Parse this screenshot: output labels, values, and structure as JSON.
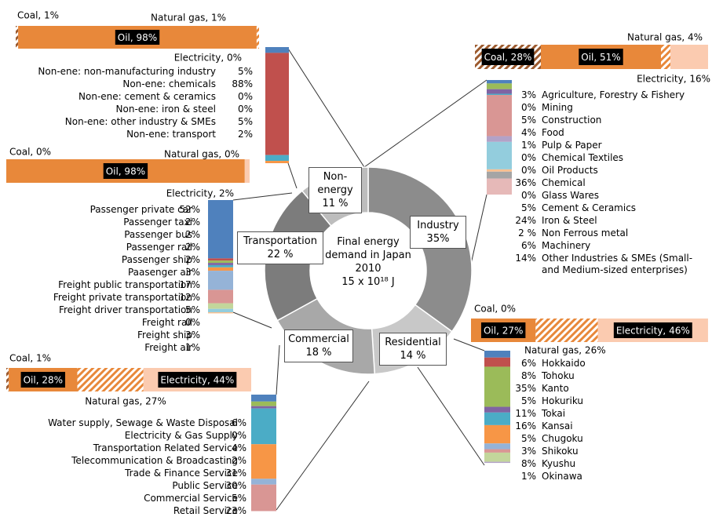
{
  "chart_data": {
    "type": "pie",
    "title": "Final energy demand in Japan 2010",
    "subtitle": "15 x 10¹⁸ J",
    "categories": [
      "Industry",
      "Residential",
      "Commercial",
      "Transportation",
      "Non-energy"
    ],
    "values": [
      35,
      14,
      18,
      22,
      11
    ],
    "value_labels": [
      "35%",
      "14 %",
      "18 %",
      "22 %",
      "11 %"
    ],
    "colors": [
      "#8c8c8c",
      "#c8c8c8",
      "#a8a8a8",
      "#7c7c7c",
      "#bdbdbd"
    ],
    "palette": [
      "#4f81bd",
      "#c0504d",
      "#9bbb59",
      "#8064a2",
      "#4bacc6",
      "#f79646",
      "#95b3d7",
      "#d99694",
      "#c3d69b",
      "#b3a2c7",
      "#93cddd",
      "#fac090",
      "#a5a5a5",
      "#e6b9b8"
    ],
    "breakdowns": [
      {
        "fuel": [
          {
            "label": "Coal, 28%",
            "value": 28,
            "color": "#9c5a2e",
            "hatch": true
          },
          {
            "label": "Oil, 51%",
            "value": 51,
            "color": "#e8883a",
            "hatch": false
          },
          {
            "label": "Natural gas, 4%",
            "value": 4,
            "color": "#e8883a",
            "hatch": true
          },
          {
            "label": "Electricity, 16%",
            "value": 16,
            "color": "#fbcbb0",
            "hatch": false
          }
        ],
        "items": [
          {
            "name": "Agriculture, Forestry & Fishery",
            "value": 3,
            "value_label": "3%"
          },
          {
            "name": "Mining",
            "value": 0,
            "value_label": "0%"
          },
          {
            "name": "Construction",
            "value": 5,
            "value_label": "5%"
          },
          {
            "name": "Food",
            "value": 4,
            "value_label": "4%"
          },
          {
            "name": "Pulp & Paper",
            "value": 1,
            "value_label": "1%"
          },
          {
            "name": "Chemical Textiles",
            "value": 0,
            "value_label": "0%"
          },
          {
            "name": "Oil Products",
            "value": 0,
            "value_label": "0%"
          },
          {
            "name": "Chemical",
            "value": 36,
            "value_label": "36%"
          },
          {
            "name": "Glass Wares",
            "value": 0,
            "value_label": "0%"
          },
          {
            "name": "Cement & Ceramics",
            "value": 5,
            "value_label": "5%"
          },
          {
            "name": "Iron & Steel",
            "value": 24,
            "value_label": "24%"
          },
          {
            "name": "Non Ferrous metal",
            "value": 2,
            "value_label": "2 %"
          },
          {
            "name": "Machinery",
            "value": 6,
            "value_label": "6%"
          },
          {
            "name": "Other Industries & SMEs (Small- and Medium-sized enterprises)",
            "value": 14,
            "value_label": "14%"
          }
        ]
      },
      {
        "fuel": [
          {
            "label": "Coal, 0%",
            "value": 0,
            "color": "#9c5a2e",
            "hatch": true
          },
          {
            "label": "Oil, 27%",
            "value": 27,
            "color": "#e8883a",
            "hatch": false
          },
          {
            "label": "Natural gas, 26%",
            "value": 26,
            "color": "#e8883a",
            "hatch": true
          },
          {
            "label": "Electricity, 46%",
            "value": 46,
            "color": "#fbcbb0",
            "hatch": false
          }
        ],
        "items": [
          {
            "name": "Hokkaido",
            "value": 6,
            "value_label": "6%"
          },
          {
            "name": "Tohoku",
            "value": 8,
            "value_label": "8%"
          },
          {
            "name": "Kanto",
            "value": 35,
            "value_label": "35%"
          },
          {
            "name": "Hokuriku",
            "value": 5,
            "value_label": "5%"
          },
          {
            "name": "Tokai",
            "value": 11,
            "value_label": "11%"
          },
          {
            "name": "Kansai",
            "value": 16,
            "value_label": "16%"
          },
          {
            "name": "Chugoku",
            "value": 5,
            "value_label": "5%"
          },
          {
            "name": "Shikoku",
            "value": 3,
            "value_label": "3%"
          },
          {
            "name": "Kyushu",
            "value": 8,
            "value_label": "8%"
          },
          {
            "name": "Okinawa",
            "value": 1,
            "value_label": "1%"
          }
        ]
      },
      {
        "fuel": [
          {
            "label": "Coal, 1%",
            "value": 1,
            "color": "#9c5a2e",
            "hatch": true
          },
          {
            "label": "Oil, 28%",
            "value": 28,
            "color": "#e8883a",
            "hatch": false
          },
          {
            "label": "Natural gas, 27%",
            "value": 27,
            "color": "#e8883a",
            "hatch": true
          },
          {
            "label": "Electricity, 44%",
            "value": 44,
            "color": "#fbcbb0",
            "hatch": false
          }
        ],
        "items": [
          {
            "name": "Water supply, Sewage & Waste Disposal",
            "value": 6,
            "value_label": "6%"
          },
          {
            "name": "Electricity & Gas Supply",
            "value": 0,
            "value_label": "0%"
          },
          {
            "name": "Transportation Related Service",
            "value": 4,
            "value_label": "4%"
          },
          {
            "name": "Telecommunication & Broadcasting",
            "value": 2,
            "value_label": "2%"
          },
          {
            "name": "Trade & Finance Service",
            "value": 31,
            "value_label": "31%"
          },
          {
            "name": "Public Service",
            "value": 30,
            "value_label": "30%"
          },
          {
            "name": "Commercial Service",
            "value": 5,
            "value_label": "5%"
          },
          {
            "name": "Retail Service",
            "value": 23,
            "value_label": "23%"
          }
        ]
      },
      {
        "fuel": [
          {
            "label": "Coal, 0%",
            "value": 0,
            "color": "#9c5a2e",
            "hatch": true
          },
          {
            "label": "Oil, 98%",
            "value": 98,
            "color": "#e8883a",
            "hatch": false
          },
          {
            "label": "Natural gas, 0%",
            "value": 0,
            "color": "#e8883a",
            "hatch": true
          },
          {
            "label": "Electricity, 2%",
            "value": 2,
            "color": "#fbcbb0",
            "hatch": false
          }
        ],
        "items": [
          {
            "name": "Passenger private car",
            "value": 52,
            "value_label": "52%"
          },
          {
            "name": "Passenger taxi",
            "value": 2,
            "value_label": "2%"
          },
          {
            "name": "Passenger bus",
            "value": 2,
            "value_label": "2%"
          },
          {
            "name": "Passenger rail",
            "value": 2,
            "value_label": "2%"
          },
          {
            "name": "Passenger ship",
            "value": 2,
            "value_label": "2%"
          },
          {
            "name": "Paasenger air",
            "value": 3,
            "value_label": "3%"
          },
          {
            "name": "Freight public transportation",
            "value": 17,
            "value_label": "17%"
          },
          {
            "name": "Freight private transportation",
            "value": 12,
            "value_label": "12%"
          },
          {
            "name": "Freight driver transportation",
            "value": 5,
            "value_label": "5%"
          },
          {
            "name": "Freight rail",
            "value": 0,
            "value_label": "0%"
          },
          {
            "name": "Freight ship",
            "value": 3,
            "value_label": "3%"
          },
          {
            "name": "Freight air",
            "value": 1,
            "value_label": "1%"
          }
        ]
      },
      {
        "fuel": [
          {
            "label": "Coal, 1%",
            "value": 1,
            "color": "#9c5a2e",
            "hatch": true
          },
          {
            "label": "Oil, 98%",
            "value": 98,
            "color": "#e8883a",
            "hatch": false
          },
          {
            "label": "Natural gas, 1%",
            "value": 1,
            "color": "#e8883a",
            "hatch": true
          },
          {
            "label": "Electricity, 0%",
            "value": 0,
            "color": "#fbcbb0",
            "hatch": false
          }
        ],
        "items": [
          {
            "name": "Non-ene: non-manufacturing industry",
            "value": 5,
            "value_label": "5%"
          },
          {
            "name": "Non-ene: chemicals",
            "value": 88,
            "value_label": "88%"
          },
          {
            "name": "Non-ene: cement & ceramics",
            "value": 0,
            "value_label": "0%"
          },
          {
            "name": "Non-ene: iron & steel",
            "value": 0,
            "value_label": "0%"
          },
          {
            "name": "Non-ene: other industry & SMEs",
            "value": 5,
            "value_label": "5%"
          },
          {
            "name": "Non-ene: transport",
            "value": 2,
            "value_label": "2%"
          }
        ]
      }
    ]
  }
}
